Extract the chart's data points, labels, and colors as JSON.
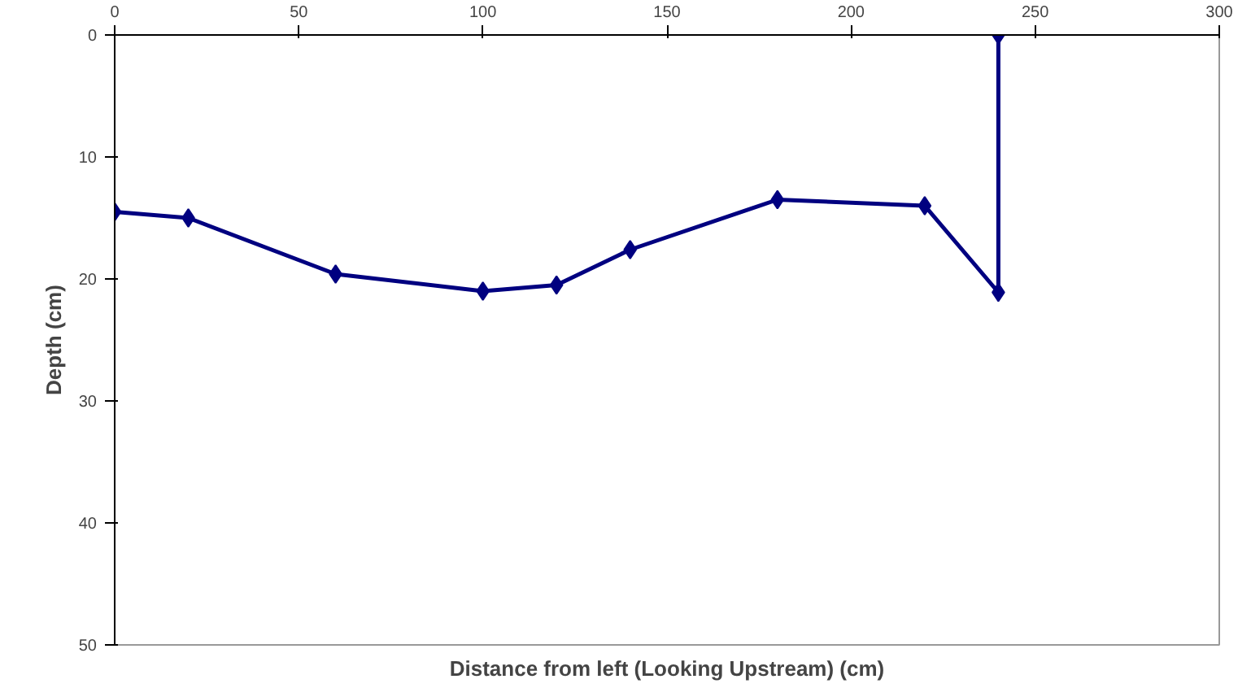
{
  "chart_data": {
    "type": "line",
    "xlabel": "Distance from left (Looking Upstream) (cm)",
    "ylabel": "Depth (cm)",
    "x": [
      0,
      20,
      60,
      100,
      120,
      140,
      180,
      220,
      240,
      240
    ],
    "series": [
      {
        "color": "#000080",
        "values": [
          14.5,
          15.0,
          19.6,
          21.0,
          20.5,
          17.6,
          13.5,
          14.0,
          21.1,
          0
        ]
      }
    ],
    "xlim": [
      0,
      300
    ],
    "xticks": [
      0,
      50,
      100,
      150,
      200,
      250,
      300
    ],
    "ylim": [
      50,
      0
    ],
    "yticks": [
      0,
      10,
      20,
      30,
      40,
      50
    ],
    "marker": "diamond",
    "line_style": "solid"
  }
}
